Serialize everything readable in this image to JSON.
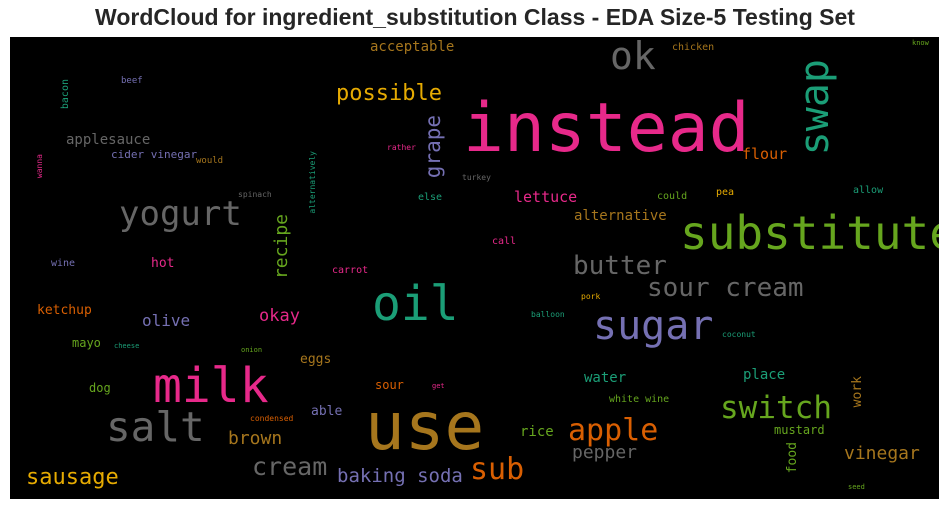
{
  "title": "WordCloud for ingredient_substitution Class - EDA Size-5 Testing Set",
  "chart_data": {
    "type": "wordcloud",
    "background": "#000000",
    "palette": [
      "#e7298a",
      "#1b9e77",
      "#66a61e",
      "#7570b3",
      "#d95f02",
      "#e6ab02",
      "#a6761d",
      "#666666"
    ],
    "words": [
      {
        "text": "instead",
        "weight": 100,
        "color": "#e7298a"
      },
      {
        "text": "use",
        "weight": 98,
        "color": "#a6761d"
      },
      {
        "text": "substitute",
        "weight": 72,
        "color": "#66a61e"
      },
      {
        "text": "milk",
        "weight": 68,
        "color": "#e7298a"
      },
      {
        "text": "oil",
        "weight": 68,
        "color": "#1b9e77"
      },
      {
        "text": "sugar",
        "weight": 60,
        "color": "#7570b3"
      },
      {
        "text": "swap",
        "weight": 58,
        "color": "#1b9e77"
      },
      {
        "text": "salt",
        "weight": 55,
        "color": "#666666"
      },
      {
        "text": "yogurt",
        "weight": 48,
        "color": "#666666"
      },
      {
        "text": "ok",
        "weight": 45,
        "color": "#666666"
      },
      {
        "text": "switch",
        "weight": 42,
        "color": "#66a61e"
      },
      {
        "text": "apple",
        "weight": 40,
        "color": "#d95f02"
      },
      {
        "text": "sour cream",
        "weight": 38,
        "color": "#666666"
      },
      {
        "text": "butter",
        "weight": 35,
        "color": "#666666"
      },
      {
        "text": "sub",
        "weight": 35,
        "color": "#d95f02"
      },
      {
        "text": "cream",
        "weight": 34,
        "color": "#666666"
      },
      {
        "text": "possible",
        "weight": 32,
        "color": "#e6ab02"
      },
      {
        "text": "grape",
        "weight": 30,
        "color": "#7570b3"
      },
      {
        "text": "sausage",
        "weight": 30,
        "color": "#e6ab02"
      },
      {
        "text": "recipe",
        "weight": 27,
        "color": "#66a61e"
      },
      {
        "text": "baking soda",
        "weight": 26,
        "color": "#7570b3"
      },
      {
        "text": "brown",
        "weight": 23,
        "color": "#a6761d"
      },
      {
        "text": "vinegar",
        "weight": 23,
        "color": "#a6761d"
      },
      {
        "text": "pepper",
        "weight": 23,
        "color": "#666666"
      },
      {
        "text": "okay",
        "weight": 22,
        "color": "#e7298a"
      },
      {
        "text": "olive",
        "weight": 21,
        "color": "#7570b3"
      },
      {
        "text": "flour",
        "weight": 20,
        "color": "#d95f02"
      },
      {
        "text": "lettuce",
        "weight": 19,
        "color": "#e7298a"
      },
      {
        "text": "alternative",
        "weight": 19,
        "color": "#a6761d"
      },
      {
        "text": "water",
        "weight": 19,
        "color": "#1b9e77"
      },
      {
        "text": "place",
        "weight": 19,
        "color": "#1b9e77"
      },
      {
        "text": "acceptable",
        "weight": 18,
        "color": "#a6761d"
      },
      {
        "text": "applesauce",
        "weight": 18,
        "color": "#666666"
      },
      {
        "text": "rice",
        "weight": 18,
        "color": "#66a61e"
      },
      {
        "text": "able",
        "weight": 17,
        "color": "#7570b3"
      },
      {
        "text": "food",
        "weight": 17,
        "color": "#66a61e"
      },
      {
        "text": "work",
        "weight": 16,
        "color": "#a6761d"
      },
      {
        "text": "hot",
        "weight": 16,
        "color": "#e7298a"
      },
      {
        "text": "ketchup",
        "weight": 15,
        "color": "#d95f02"
      },
      {
        "text": "eggs",
        "weight": 15,
        "color": "#a6761d"
      },
      {
        "text": "sour",
        "weight": 15,
        "color": "#d95f02"
      },
      {
        "text": "mayo",
        "weight": 15,
        "color": "#66a61e"
      },
      {
        "text": "dog",
        "weight": 15,
        "color": "#66a61e"
      },
      {
        "text": "mustard",
        "weight": 14,
        "color": "#66a61e"
      },
      {
        "text": "cider vinegar",
        "weight": 13,
        "color": "#7570b3"
      },
      {
        "text": "bacon",
        "weight": 12,
        "color": "#1b9e77"
      },
      {
        "text": "could",
        "weight": 12,
        "color": "#66a61e"
      },
      {
        "text": "chicken",
        "weight": 12,
        "color": "#a6761d"
      },
      {
        "text": "white wine",
        "weight": 12,
        "color": "#66a61e"
      },
      {
        "text": "allow",
        "weight": 12,
        "color": "#1b9e77"
      },
      {
        "text": "call",
        "weight": 12,
        "color": "#e7298a"
      },
      {
        "text": "else",
        "weight": 12,
        "color": "#1b9e77"
      },
      {
        "text": "pea",
        "weight": 11,
        "color": "#e6ab02"
      },
      {
        "text": "wine",
        "weight": 11,
        "color": "#7570b3"
      },
      {
        "text": "carrot",
        "weight": 11,
        "color": "#e7298a"
      },
      {
        "text": "would",
        "weight": 10,
        "color": "#a6761d"
      },
      {
        "text": "beef",
        "weight": 10,
        "color": "#7570b3"
      },
      {
        "text": "alternatively",
        "weight": 9,
        "color": "#1b9e77"
      },
      {
        "text": "rather",
        "weight": 9,
        "color": "#e7298a"
      },
      {
        "text": "turkey",
        "weight": 9,
        "color": "#666666"
      },
      {
        "text": "spinach",
        "weight": 9,
        "color": "#666666"
      },
      {
        "text": "wanna",
        "weight": 9,
        "color": "#e7298a"
      },
      {
        "text": "balloon",
        "weight": 9,
        "color": "#1b9e77"
      },
      {
        "text": "condensed",
        "weight": 9,
        "color": "#d95f02"
      },
      {
        "text": "coconut",
        "weight": 9,
        "color": "#1b9e77"
      },
      {
        "text": "pork",
        "weight": 9,
        "color": "#e6ab02"
      },
      {
        "text": "cheese",
        "weight": 8,
        "color": "#1b9e77"
      },
      {
        "text": "onion",
        "weight": 8,
        "color": "#66a61e"
      },
      {
        "text": "get",
        "weight": 8,
        "color": "#e7298a"
      },
      {
        "text": "seed",
        "weight": 8,
        "color": "#66a61e"
      },
      {
        "text": "know",
        "weight": 8,
        "color": "#66a61e"
      }
    ]
  }
}
